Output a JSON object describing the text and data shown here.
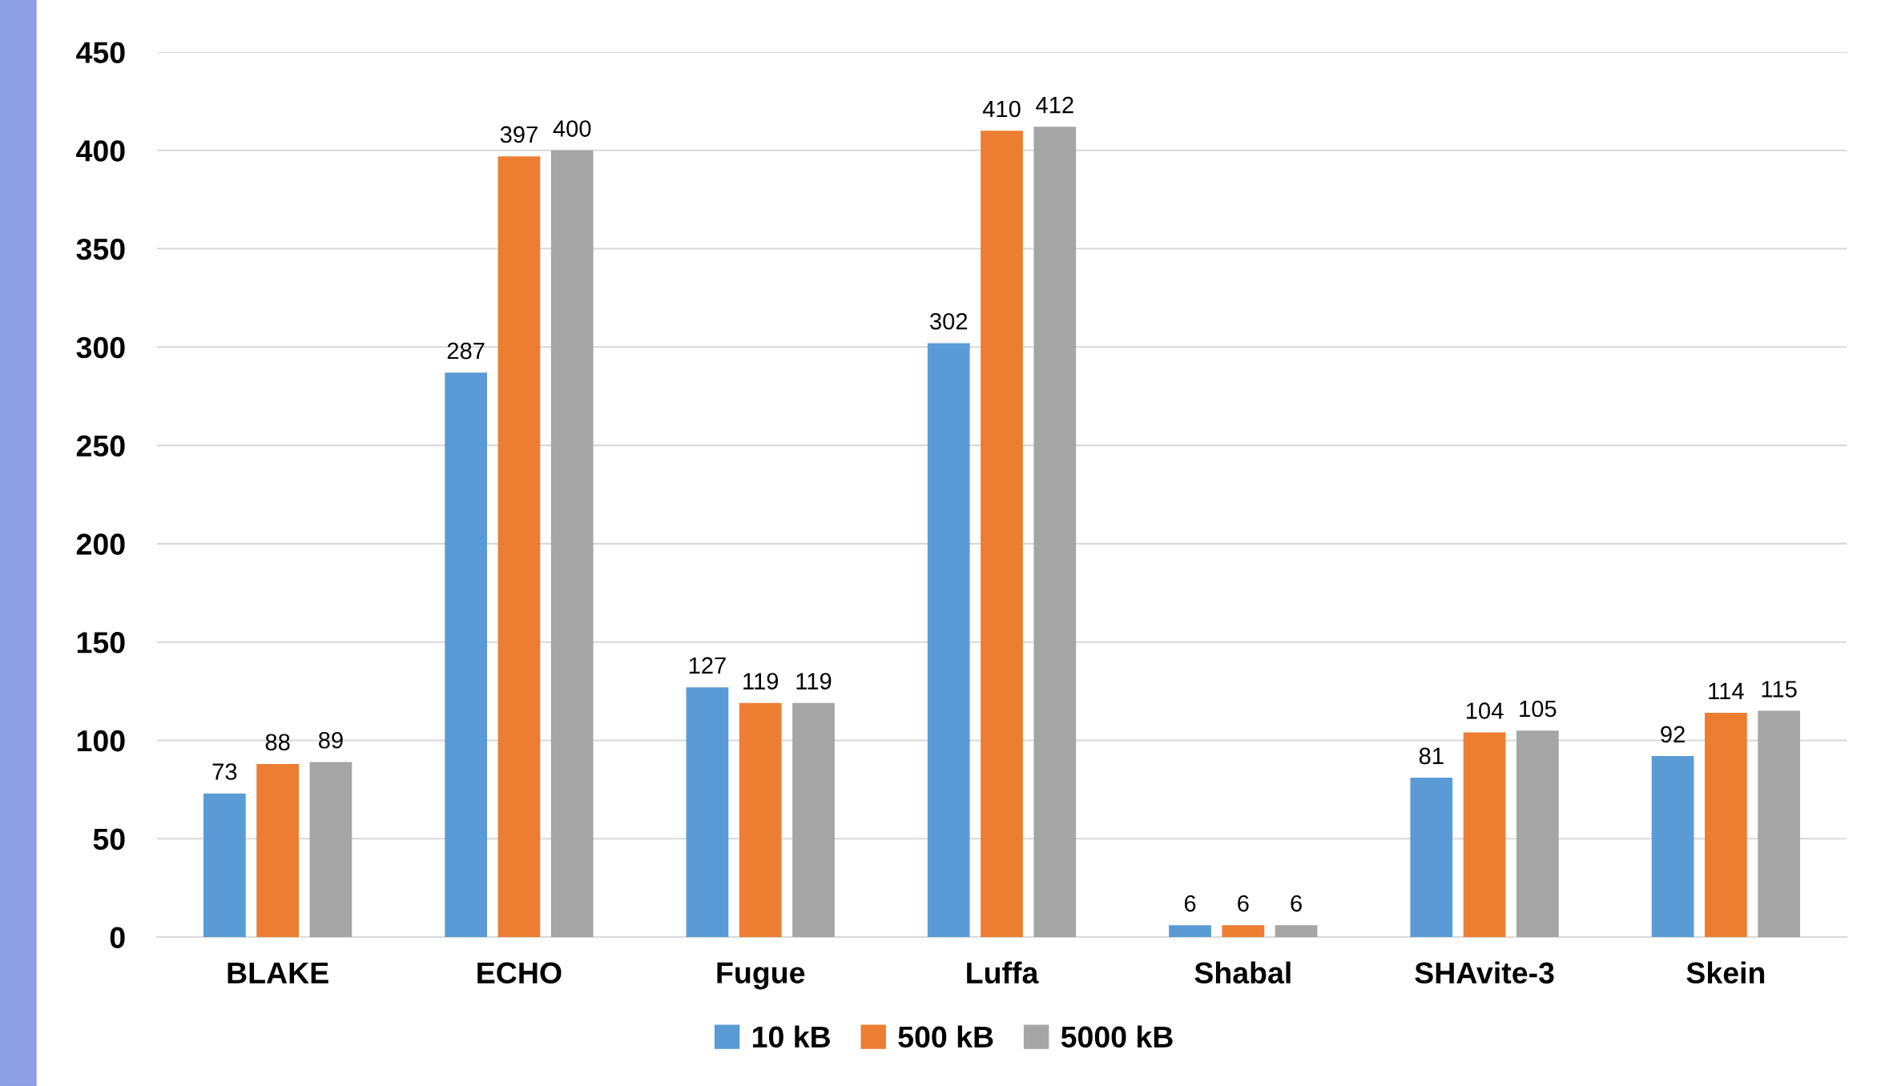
{
  "chart_data": {
    "type": "bar",
    "categories": [
      "BLAKE",
      "ECHO",
      "Fugue",
      "Luffa",
      "Shabal",
      "SHAvite-3",
      "Skein"
    ],
    "series": [
      {
        "name": "10 kB",
        "color": "#5b9bd5",
        "values": [
          73,
          287,
          127,
          302,
          6,
          81,
          92
        ]
      },
      {
        "name": "500 kB",
        "color": "#ed7d31",
        "values": [
          88,
          397,
          119,
          410,
          6,
          104,
          114
        ]
      },
      {
        "name": "5000 kB",
        "color": "#a5a5a5",
        "values": [
          89,
          400,
          119,
          412,
          6,
          105,
          115
        ]
      }
    ],
    "ylim": [
      0,
      450
    ],
    "yticks": [
      0,
      50,
      100,
      150,
      200,
      250,
      300,
      350,
      400,
      450
    ],
    "grid": "y",
    "legend": "bottom",
    "data_labels": true
  }
}
